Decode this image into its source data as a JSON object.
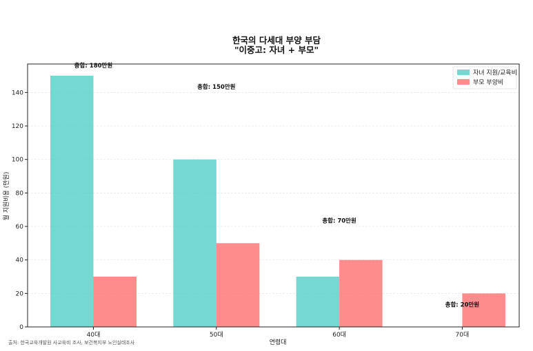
{
  "chart_data": {
    "type": "bar",
    "title_lines": [
      "한국의 다세대 부양 부담",
      "\"이중고: 자녀 + 부모\""
    ],
    "xlabel": "연령대",
    "ylabel": "월 지원비용 (만원)",
    "categories": [
      "40대",
      "50대",
      "60대",
      "70대"
    ],
    "series": [
      {
        "name": "자녀 지원/교육비",
        "values": [
          150,
          100,
          30,
          0
        ],
        "color": "#4ECDC4"
      },
      {
        "name": "부모 부양비",
        "values": [
          30,
          50,
          40,
          20
        ],
        "color": "#FF6B6B"
      }
    ],
    "totals": [
      "총합: 180만원",
      "총합: 150만원",
      "총합: 70만원",
      "총합: 20만원"
    ],
    "total_values": [
      180,
      150,
      70,
      20
    ],
    "ylim": [
      0,
      157
    ],
    "yticks": [
      0,
      20,
      40,
      60,
      80,
      100,
      120,
      140
    ],
    "grid": true,
    "legend_position": "top-right",
    "source": "출처: 한국교육개발원 사교육비 조사, 보건복지부 노인실태조사"
  }
}
